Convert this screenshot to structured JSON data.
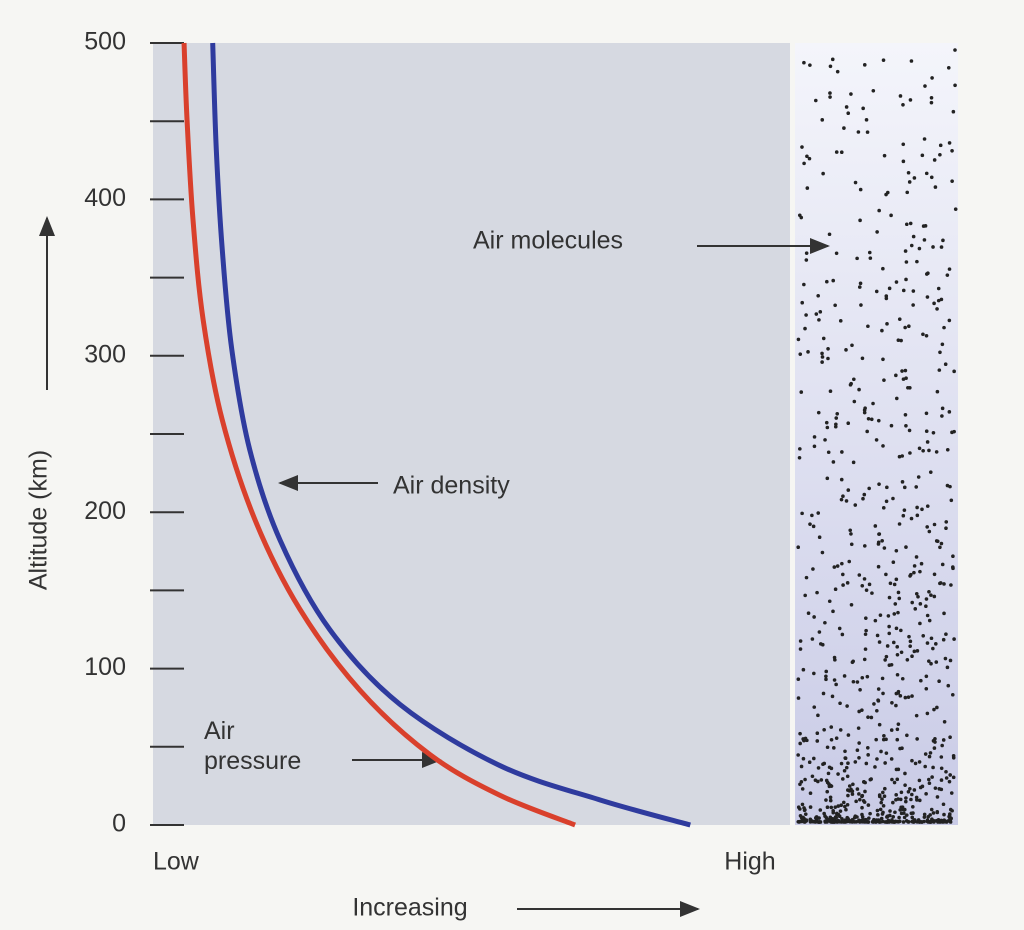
{
  "chart_data": {
    "type": "line",
    "ylabel": "Altitude (km)",
    "xlabel": "Increasing",
    "ylim": [
      0,
      500
    ],
    "yticks": [
      0,
      100,
      200,
      300,
      400,
      500
    ],
    "minor_yticks": [
      50,
      150,
      250,
      350,
      450
    ],
    "xlim": [
      0,
      1.067
    ],
    "xticks": [
      {
        "value": 0,
        "label": "Low"
      },
      {
        "value": 1,
        "label": "High"
      }
    ],
    "series": [
      {
        "name": "Air density",
        "color": "#2f3b9e",
        "x": [
          0.9,
          0.749,
          0.581,
          0.414,
          0.296,
          0.213,
          0.162,
          0.132,
          0.116,
          0.106,
          0.1
        ],
        "values": [
          0,
          16,
          38,
          77,
          125,
          182,
          240,
          304,
          368,
          432,
          500
        ]
      },
      {
        "name": "Air pressure",
        "color": "#d9402c",
        "x": [
          0.707,
          0.581,
          0.464,
          0.347,
          0.246,
          0.171,
          0.116,
          0.084,
          0.067,
          0.057,
          0.052
        ],
        "values": [
          0,
          19,
          45,
          86,
          138,
          195,
          259,
          323,
          387,
          451,
          500
        ]
      }
    ],
    "annotations": [
      "Air molecules",
      "Air density",
      "Air pressure"
    ]
  }
}
